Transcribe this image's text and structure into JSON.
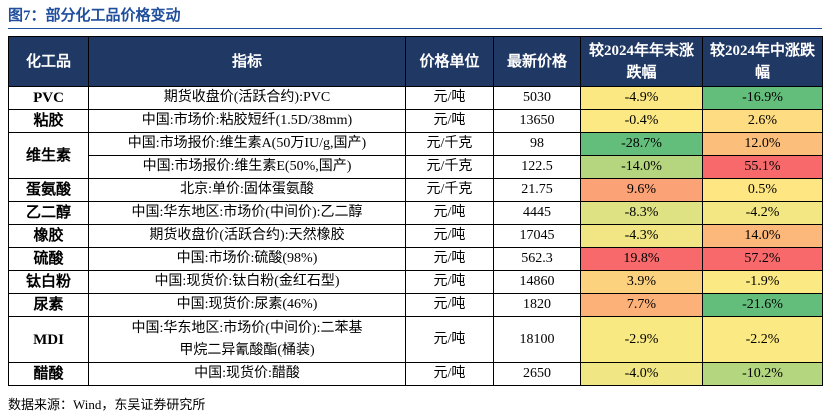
{
  "title": "图7：部分化工品价格变动",
  "table": {
    "header": [
      "化工品",
      "指标",
      "价格单位",
      "最新价格",
      "较2024年年末涨跌幅",
      "较2024年中涨跌幅"
    ],
    "groups": [
      {
        "name": "PVC",
        "rows": [
          {
            "indicator": "期货收盘价(活跃合约):PVC",
            "unit": "元/吨",
            "price": 5030,
            "change_ye": "-4.9%",
            "change_ye_color": "#fce883",
            "change_mid": "-16.9%",
            "change_mid_color": "#63be7b"
          }
        ]
      },
      {
        "name": "粘胶",
        "rows": [
          {
            "indicator": "中国:市场价:粘胶短纤(1.5D/38mm)",
            "unit": "元/吨",
            "price": 13650,
            "change_ye": "-0.4%",
            "change_ye_color": "#fde983",
            "change_mid": "2.6%",
            "change_mid_color": "#fedc81"
          }
        ]
      },
      {
        "name": "维生素",
        "rows": [
          {
            "indicator": "中国:市场报价:维生素A(50万IU/g,国产)",
            "unit": "元/千克",
            "price": 98,
            "change_ye": "-28.7%",
            "change_ye_color": "#63be7b",
            "change_mid": "12.0%",
            "change_mid_color": "#fcbf7b"
          },
          {
            "indicator": "中国:市场报价:维生素E(50%,国产)",
            "unit": "元/千克",
            "price": 122.5,
            "change_ye": "-14.0%",
            "change_ye_color": "#b5d67f",
            "change_mid": "55.1%",
            "change_mid_color": "#f8696b"
          }
        ]
      },
      {
        "name": "蛋氨酸",
        "rows": [
          {
            "indicator": "北京:单价:固体蛋氨酸",
            "unit": "元/千克",
            "price": 21.75,
            "change_ye": "9.6%",
            "change_ye_color": "#fba276",
            "change_mid": "0.5%",
            "change_mid_color": "#fee683"
          }
        ]
      },
      {
        "name": "乙二醇",
        "rows": [
          {
            "indicator": "中国:华东地区:市场价(中间价):乙二醇",
            "unit": "元/吨",
            "price": 4445,
            "change_ye": "-8.3%",
            "change_ye_color": "#dfe283",
            "change_mid": "-4.2%",
            "change_mid_color": "#f3e783"
          }
        ]
      },
      {
        "name": "橡胶",
        "rows": [
          {
            "indicator": "期货收盘价(活跃合约):天然橡胶",
            "unit": "元/吨",
            "price": 17045,
            "change_ye": "-4.3%",
            "change_ye_color": "#f1e683",
            "change_mid": "14.0%",
            "change_mid_color": "#fcb77a"
          }
        ]
      },
      {
        "name": "硫酸",
        "rows": [
          {
            "indicator": "中国:市场价:硫酸(98%)",
            "unit": "元/吨",
            "price": 562.3,
            "change_ye": "19.8%",
            "change_ye_color": "#f8696b",
            "change_mid": "57.2%",
            "change_mid_color": "#f8696b"
          }
        ]
      },
      {
        "name": "钛白粉",
        "rows": [
          {
            "indicator": "中国:现货价:钛白粉(金红石型)",
            "unit": "元/吨",
            "price": 14860,
            "change_ye": "3.9%",
            "change_ye_color": "#fdd27f",
            "change_mid": "-1.9%",
            "change_mid_color": "#fbe983"
          }
        ]
      },
      {
        "name": "尿素",
        "rows": [
          {
            "indicator": "中国:现货价:尿素(46%)",
            "unit": "元/吨",
            "price": 1820,
            "change_ye": "7.7%",
            "change_ye_color": "#fcb179",
            "change_mid": "-21.6%",
            "change_mid_color": "#63be7b"
          }
        ]
      },
      {
        "name": "MDI",
        "rows": [
          {
            "indicator": [
              "中国:华东地区:市场价(中间价):二苯基",
              "甲烷二异氰酸酯(桶装)"
            ],
            "unit": "元/吨",
            "price": 18100,
            "change_ye": "-2.9%",
            "change_ye_color": "#f9e983",
            "change_mid": "-2.2%",
            "change_mid_color": "#fbe983"
          }
        ]
      },
      {
        "name": "醋酸",
        "rows": [
          {
            "indicator": "中国:现货价:醋酸",
            "unit": "元/吨",
            "price": 2650,
            "change_ye": "-4.0%",
            "change_ye_color": "#f0e683",
            "change_mid": "-10.2%",
            "change_mid_color": "#b4d67f"
          }
        ]
      }
    ]
  },
  "source": "数据来源：Wind，东吴证券研究所"
}
